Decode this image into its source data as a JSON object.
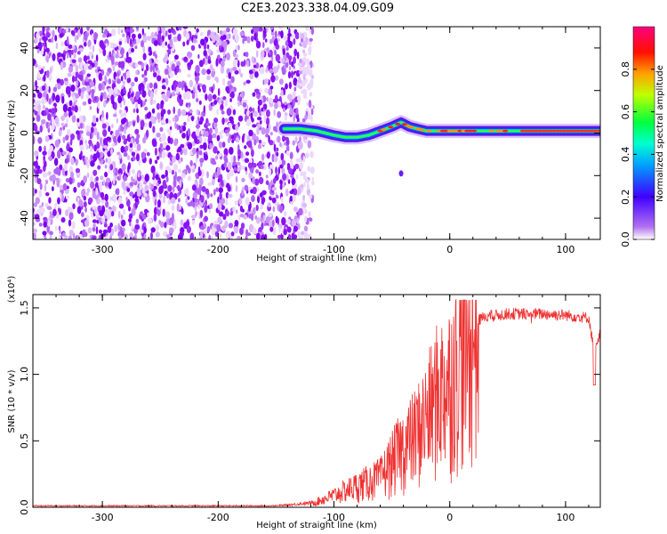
{
  "title": "C2E3.2023.338.04.09.G09",
  "chart_data": [
    {
      "type": "heatmap",
      "xlabel": "Height of straight line (km)",
      "ylabel": "Frequency (Hz)",
      "xlim": [
        -360,
        130
      ],
      "ylim": [
        -50,
        50
      ],
      "xticks": [
        -300,
        -200,
        -100,
        0,
        100
      ],
      "yticks": [
        -40,
        -20,
        0,
        20,
        40
      ],
      "colorbar": {
        "label": "Normalized spectral amplitude",
        "range": [
          0,
          1
        ],
        "ticks": [
          "0.0",
          "0.2",
          "0.4",
          "0.6",
          "0.8"
        ],
        "colormap": "rainbow (purple-blue-cyan-green-yellow-red-magenta)"
      },
      "noise_region": {
        "x": [
          -360,
          -130
        ],
        "description": "scattered low-amplitude purple speckle across all frequencies"
      },
      "dominant_frequency_track": {
        "height_km": [
          -143,
          -130,
          -115,
          -100,
          -90,
          -80,
          -70,
          -60,
          -50,
          -42,
          -35,
          -28,
          -20,
          -10,
          -5,
          0,
          20,
          60,
          100,
          130
        ],
        "frequency_hz": [
          2,
          2,
          1,
          -1,
          -2,
          -2,
          -1,
          1,
          3,
          5,
          3,
          2,
          1,
          1,
          1,
          1,
          1,
          1,
          1,
          1
        ]
      },
      "isolated_blob": {
        "height_km": -42,
        "frequency_hz": -19
      }
    },
    {
      "type": "line",
      "xlabel": "Height of straight line (km)",
      "ylabel": "SNR (10 * v/v)",
      "multiplier": "(x10⁴)",
      "xlim": [
        -360,
        130
      ],
      "ylim": [
        0,
        1.6
      ],
      "xticks": [
        -300,
        -200,
        -100,
        0,
        100
      ],
      "yticks": [
        "0.0",
        "0.5",
        "1.0",
        "1.5"
      ],
      "color": "#ee3333",
      "envelope": {
        "height_km": [
          -360,
          -150,
          -120,
          -100,
          -80,
          -60,
          -45,
          -30,
          -20,
          -10,
          0,
          10,
          20,
          30,
          50,
          80,
          100,
          120,
          125,
          130
        ],
        "snr_x1e4": [
          0.01,
          0.01,
          0.03,
          0.1,
          0.18,
          0.25,
          0.45,
          0.6,
          0.75,
          0.95,
          1.05,
          1.3,
          1.42,
          1.48,
          1.5,
          1.5,
          1.49,
          1.47,
          1.2,
          1.35
        ]
      }
    }
  ]
}
